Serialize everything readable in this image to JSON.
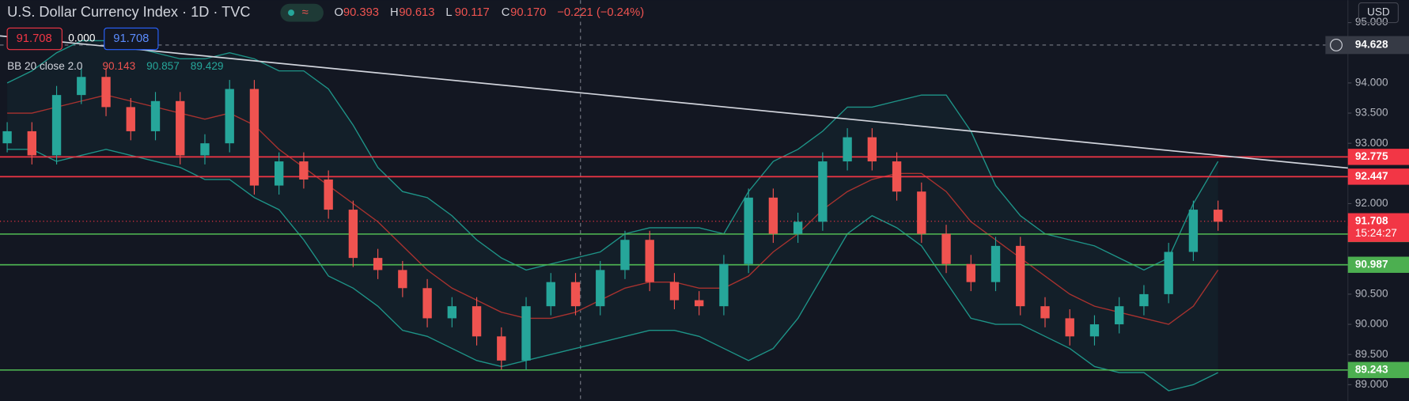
{
  "header": {
    "title": "U.S. Dollar Currency Index · 1D · TVC",
    "ohlc": [
      {
        "key": "O",
        "value": 90.393
      },
      {
        "key": "H",
        "value": 90.613
      },
      {
        "key": "L",
        "value": 90.117
      },
      {
        "key": "C",
        "value": 90.17
      }
    ],
    "ohlc_labels": [
      "90.393",
      "90.613",
      "90.117",
      "90.170"
    ],
    "change": "−0.221 (−0.24%)",
    "currency": "USD"
  },
  "toolbar_values": [
    "91.708",
    "0.000",
    "91.708"
  ],
  "indicator": {
    "label": "BB 20 close 2.0",
    "values": [
      "90.143",
      "90.857",
      "89.429"
    ]
  },
  "chart_data": {
    "type": "candlestick",
    "open": [
      93.0,
      93.2,
      92.8,
      93.8,
      94.1,
      93.6,
      93.2,
      93.7,
      92.8,
      93.0,
      93.9,
      92.3,
      92.7,
      92.4,
      91.9,
      91.1,
      90.9,
      90.6,
      90.1,
      90.3,
      89.8,
      89.4,
      90.3,
      90.7,
      90.3,
      90.9,
      91.4,
      90.7,
      90.4,
      90.3,
      91.0,
      92.1,
      91.5,
      91.7,
      92.7,
      93.1,
      92.7,
      92.2,
      91.5,
      91.0,
      90.7,
      91.3,
      90.3,
      90.1,
      89.8,
      90.0,
      90.3,
      90.5,
      91.2,
      91.9
    ],
    "high": [
      93.35,
      93.35,
      93.95,
      94.25,
      94.25,
      93.75,
      93.85,
      93.85,
      93.15,
      94.05,
      94.05,
      92.85,
      92.85,
      92.55,
      92.05,
      91.25,
      91.05,
      90.75,
      90.45,
      90.45,
      89.95,
      90.45,
      90.85,
      90.85,
      91.05,
      91.55,
      91.55,
      90.85,
      90.55,
      91.15,
      92.25,
      92.25,
      91.85,
      92.85,
      93.25,
      93.25,
      92.85,
      92.35,
      91.65,
      91.15,
      91.45,
      91.45,
      90.45,
      90.25,
      90.15,
      90.45,
      90.65,
      91.35,
      92.05,
      92.05
    ],
    "low": [
      92.85,
      92.65,
      92.65,
      93.65,
      93.45,
      93.05,
      93.05,
      92.65,
      92.65,
      92.85,
      92.15,
      92.15,
      92.25,
      91.75,
      90.95,
      90.75,
      90.45,
      89.95,
      89.95,
      89.65,
      89.25,
      89.25,
      90.15,
      90.15,
      90.15,
      90.75,
      90.55,
      90.25,
      90.15,
      90.15,
      90.85,
      91.35,
      91.35,
      91.55,
      92.55,
      92.55,
      92.05,
      91.35,
      90.85,
      90.55,
      90.55,
      90.15,
      89.95,
      89.65,
      89.65,
      89.85,
      90.15,
      90.35,
      91.05,
      91.55
    ],
    "close": [
      93.2,
      92.8,
      93.8,
      94.1,
      93.6,
      93.2,
      93.7,
      92.8,
      93.0,
      93.9,
      92.3,
      92.7,
      92.4,
      91.9,
      91.1,
      90.9,
      90.6,
      90.1,
      90.3,
      89.8,
      89.4,
      90.3,
      90.7,
      90.3,
      90.9,
      91.4,
      90.7,
      90.4,
      90.3,
      91.0,
      92.1,
      91.5,
      91.7,
      92.7,
      93.1,
      92.7,
      92.2,
      91.5,
      91.0,
      90.7,
      91.3,
      90.3,
      90.1,
      89.8,
      90.0,
      90.3,
      90.5,
      91.2,
      91.9,
      91.7
    ],
    "up_color": "#26a69a",
    "down_color": "#ef5350",
    "bands": {
      "upper": [
        94.0,
        94.2,
        94.5,
        94.7,
        94.7,
        94.6,
        94.5,
        94.4,
        94.4,
        94.5,
        94.4,
        94.2,
        94.2,
        93.9,
        93.3,
        92.6,
        92.2,
        92.1,
        91.8,
        91.4,
        91.1,
        90.9,
        91.0,
        91.1,
        91.2,
        91.5,
        91.6,
        91.6,
        91.6,
        91.5,
        92.2,
        92.7,
        92.9,
        93.2,
        93.6,
        93.6,
        93.7,
        93.8,
        93.8,
        93.2,
        92.3,
        91.8,
        91.5,
        91.4,
        91.3,
        91.1,
        90.9,
        91.1,
        92.0,
        92.7
      ],
      "middle": [
        93.5,
        93.5,
        93.6,
        93.7,
        93.8,
        93.7,
        93.6,
        93.5,
        93.4,
        93.5,
        93.3,
        92.9,
        92.6,
        92.3,
        92.0,
        91.7,
        91.3,
        90.9,
        90.6,
        90.4,
        90.2,
        90.1,
        90.1,
        90.2,
        90.4,
        90.6,
        90.7,
        90.7,
        90.6,
        90.6,
        90.8,
        91.2,
        91.5,
        91.9,
        92.2,
        92.4,
        92.5,
        92.5,
        92.2,
        91.7,
        91.4,
        91.1,
        90.8,
        90.5,
        90.3,
        90.2,
        90.1,
        90.0,
        90.3,
        90.9
      ],
      "lower": [
        92.9,
        92.9,
        92.7,
        92.8,
        92.9,
        92.8,
        92.7,
        92.6,
        92.4,
        92.4,
        92.1,
        91.9,
        91.4,
        90.8,
        90.6,
        90.3,
        89.9,
        89.8,
        89.6,
        89.4,
        89.3,
        89.4,
        89.5,
        89.6,
        89.7,
        89.8,
        89.9,
        89.9,
        89.8,
        89.6,
        89.4,
        89.6,
        90.1,
        90.8,
        91.5,
        91.8,
        91.6,
        91.3,
        90.7,
        90.1,
        90.0,
        90.0,
        89.8,
        89.6,
        89.3,
        89.2,
        89.2,
        88.9,
        89.0,
        89.2
      ],
      "band_color": "#1e9488",
      "middle_color": "#a8322f"
    },
    "ylim": [
      88.732,
      95.372
    ],
    "yticks": [
      {
        "value": 95,
        "label": "95.000"
      },
      {
        "value": 94,
        "label": "94.000"
      },
      {
        "value": 93.5,
        "label": "93.500"
      },
      {
        "value": 93,
        "label": "93.000"
      },
      {
        "value": 92,
        "label": "92.000"
      },
      {
        "value": 90.5,
        "label": "90.500"
      },
      {
        "value": 90,
        "label": "90.000"
      },
      {
        "value": 89.5,
        "label": "89.500"
      },
      {
        "value": 89,
        "label": "89.000"
      }
    ],
    "levels": [
      {
        "value": 92.775,
        "color": "#f23645"
      },
      {
        "value": 92.447,
        "color": "#f23645"
      },
      {
        "value": 91.496,
        "color": "#4caf50"
      },
      {
        "value": 90.987,
        "color": "#4caf50"
      },
      {
        "value": 89.243,
        "color": "#4caf50"
      }
    ],
    "last_price": 91.708,
    "last_price_color": "#f23645",
    "countdown": "15:24:27",
    "crosshair": 94.628,
    "trendline": [
      94.78,
      92.59
    ]
  }
}
